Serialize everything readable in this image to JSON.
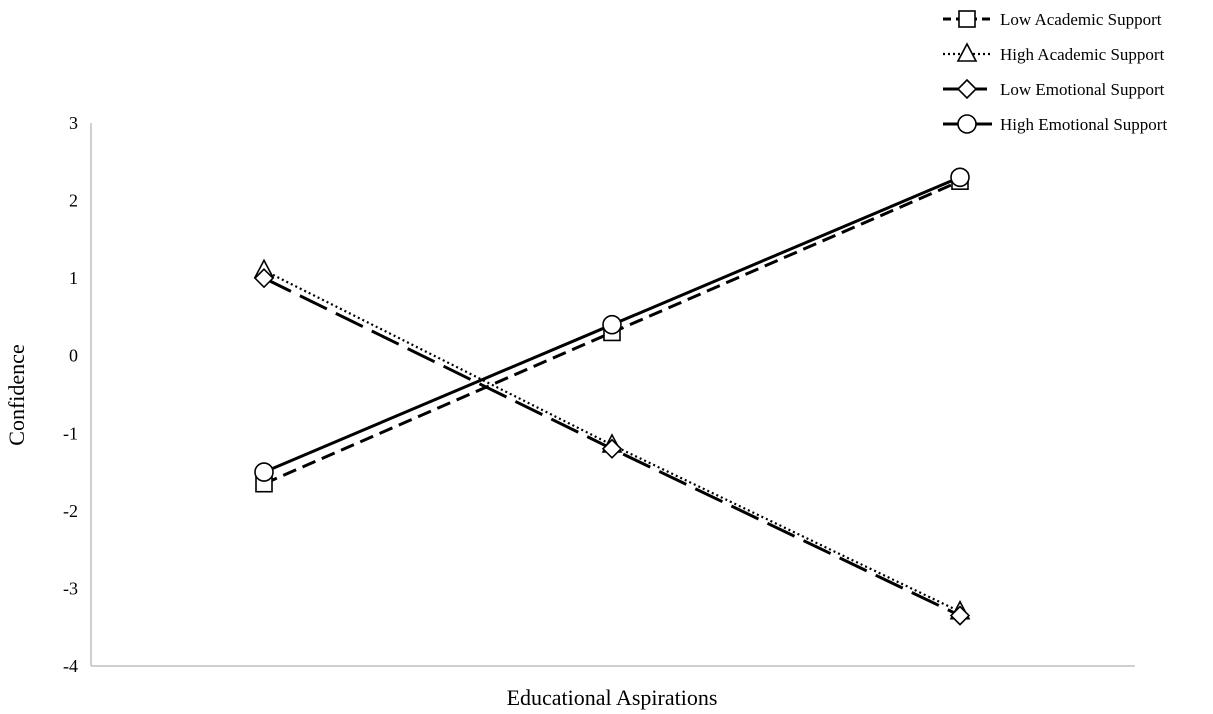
{
  "chart_data": {
    "type": "line",
    "title": "",
    "xlabel": "Educational Aspirations",
    "ylabel": "Confidence",
    "ylim": [
      -4,
      3
    ],
    "yticks": [
      "3",
      "2",
      "1",
      "0",
      "-1",
      "-2",
      "-3",
      "-4"
    ],
    "ytick_values": [
      3,
      2,
      1,
      0,
      -1,
      -2,
      -3,
      -4
    ],
    "categories": [
      "",
      "",
      ""
    ],
    "grid": false,
    "legend_position": "top-right",
    "series": [
      {
        "name": "Low Academic Support",
        "values": [
          -1.65,
          0.3,
          2.25
        ],
        "marker": "square",
        "dash": "dashed"
      },
      {
        "name": "High Academic Support",
        "values": [
          1.1,
          -1.15,
          -3.3
        ],
        "marker": "triangle",
        "dash": "dotted"
      },
      {
        "name": "Low Emotional Support",
        "values": [
          1.0,
          -1.2,
          -3.35
        ],
        "marker": "diamond",
        "dash": "long-dash"
      },
      {
        "name": "High Emotional Support",
        "values": [
          -1.5,
          0.4,
          2.3
        ],
        "marker": "circle",
        "dash": "solid"
      }
    ],
    "colors": {
      "line": "#000000",
      "axis": "#bfbfbf",
      "marker_fill": "#ffffff"
    }
  }
}
